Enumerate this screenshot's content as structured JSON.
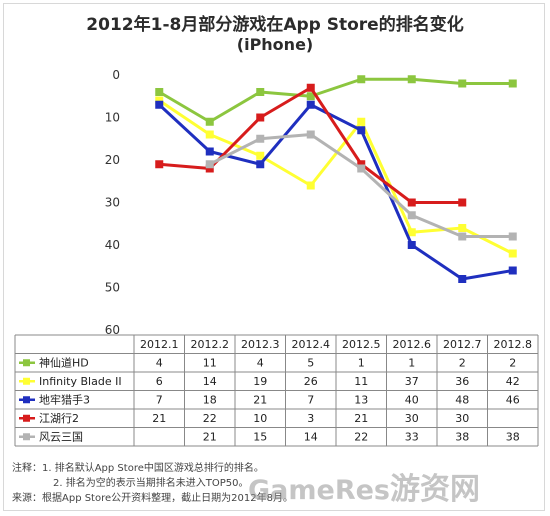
{
  "chart_data": {
    "type": "line",
    "title": "2012年1-8月部分游戏在App Store的排名变化",
    "subtitle": "(iPhone)",
    "categories": [
      "2012.1",
      "2012.2",
      "2012.3",
      "2012.4",
      "2012.5",
      "2012.6",
      "2012.7",
      "2012.8"
    ],
    "ylim": [
      0,
      60
    ],
    "y_inverted": true,
    "yticks": [
      0,
      10,
      20,
      30,
      40,
      50,
      60
    ],
    "grid": false,
    "legend": "data-table-below",
    "series": [
      {
        "name": "神仙道HD",
        "color": "#8cc63f",
        "values": [
          4,
          11,
          4,
          5,
          1,
          1,
          2,
          2
        ]
      },
      {
        "name": "Infinity Blade II",
        "color": "#ffff33",
        "values": [
          6,
          14,
          19,
          26,
          11,
          37,
          36,
          42
        ]
      },
      {
        "name": "地牢猎手3",
        "color": "#1f2fbf",
        "values": [
          7,
          18,
          21,
          7,
          13,
          40,
          48,
          46
        ]
      },
      {
        "name": "江湖行2",
        "color": "#d71c1c",
        "values": [
          21,
          22,
          10,
          3,
          21,
          30,
          30,
          null
        ]
      },
      {
        "name": "风云三国",
        "color": "#b3b3b3",
        "values": [
          null,
          21,
          15,
          14,
          22,
          33,
          38,
          38
        ]
      }
    ]
  },
  "notes": {
    "note1": "注释：1. 排名默认App Store中国区游戏总排行的排名。",
    "note2": "2. 排名为空的表示当期排名未进入TOP50。",
    "source": "来源：根据App Store公开资料整理，截止日期为2012年8月。"
  },
  "watermark": {
    "latin": "GameRes",
    "cn": "游资网"
  }
}
